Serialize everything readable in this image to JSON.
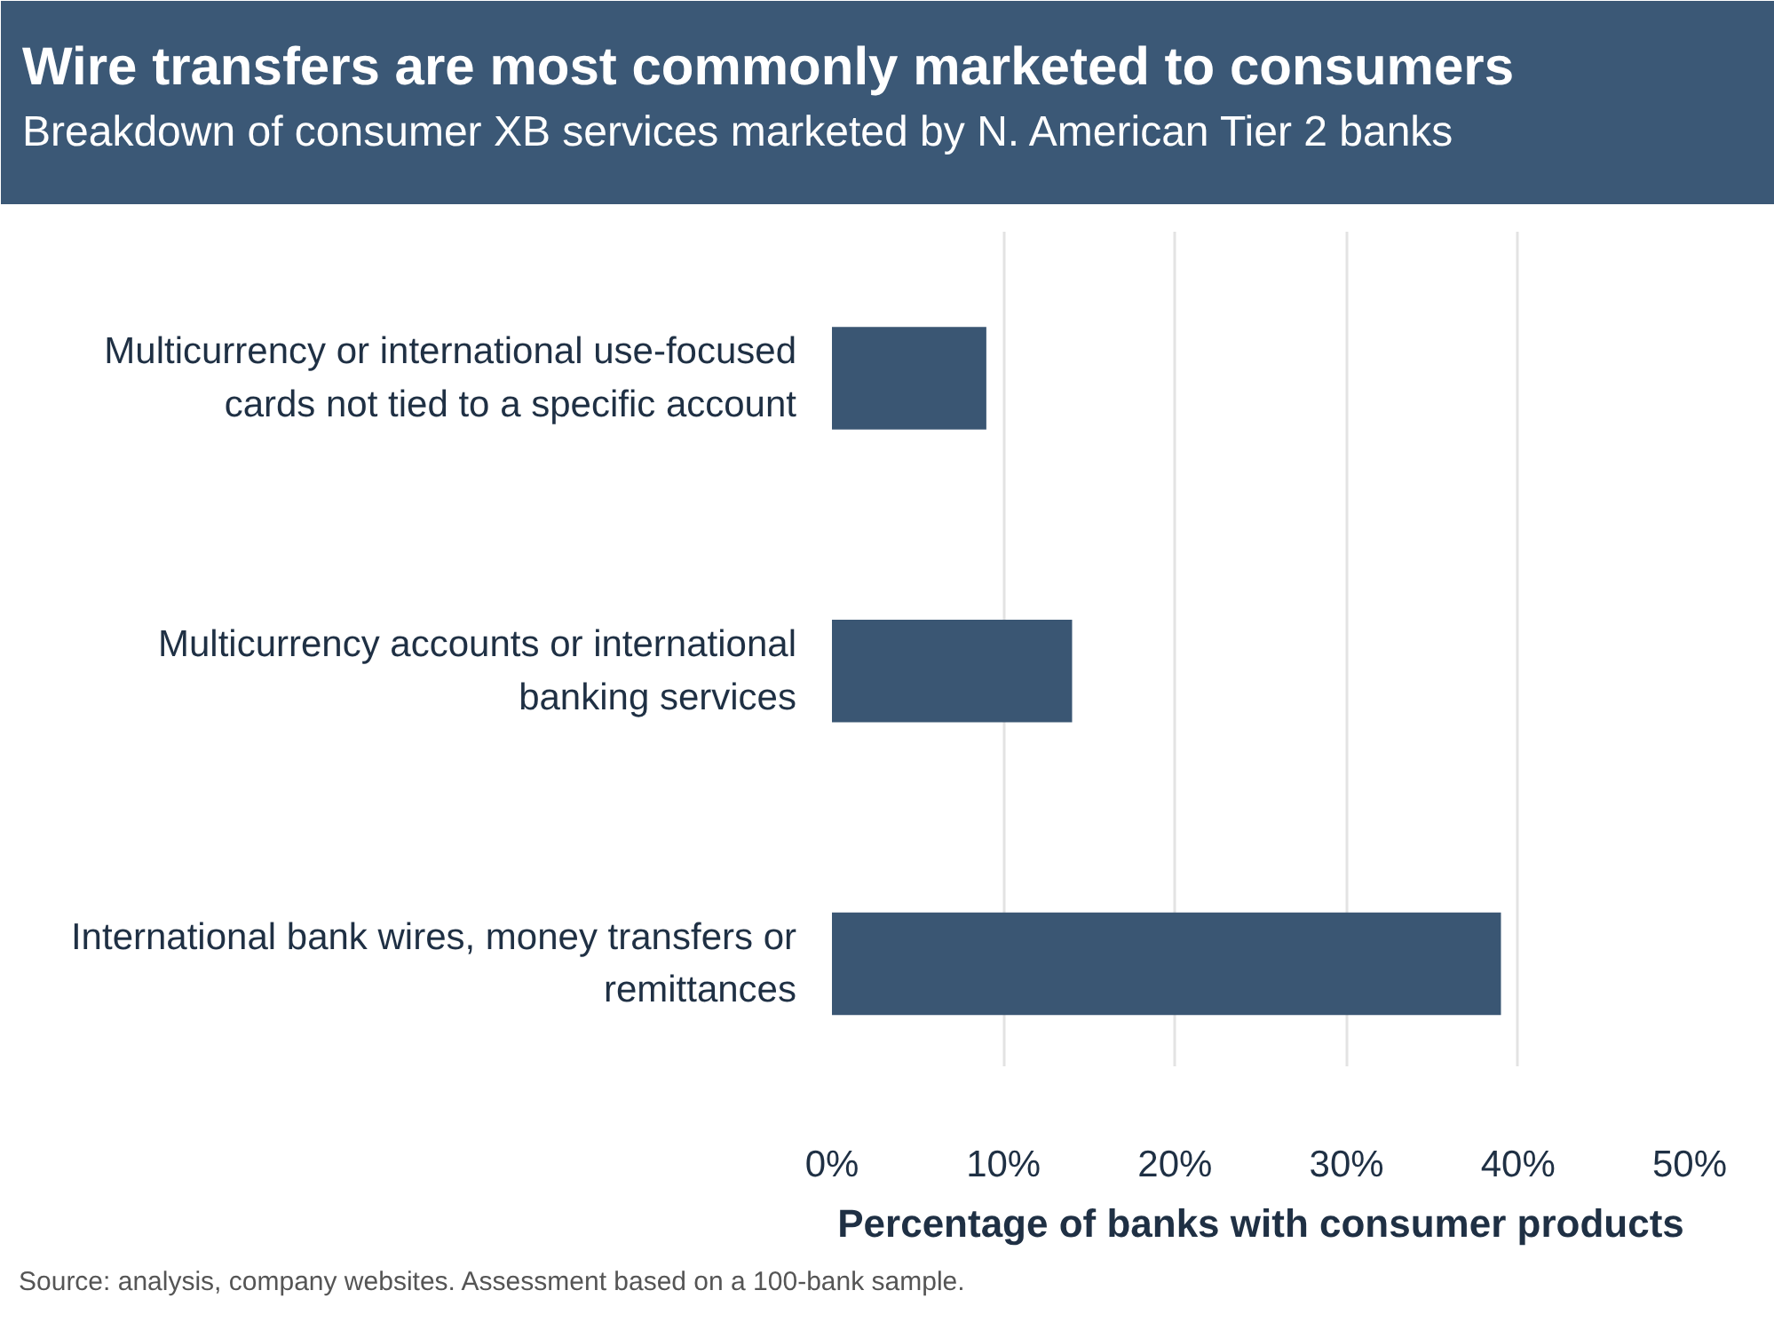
{
  "chart_data": {
    "type": "bar",
    "orientation": "horizontal",
    "title": "Wire transfers are most commonly marketed to consumers",
    "subtitle": "Breakdown of consumer XB services marketed by N. American Tier 2 banks",
    "xlabel": "Percentage of banks with consumer products",
    "categories": [
      "Multicurrency or international use-focused cards not tied to a specific account",
      "Multicurrency accounts or international banking services",
      "International bank wires, money transfers or remittances"
    ],
    "values": [
      9,
      14,
      39
    ],
    "color": "#3a5673",
    "xlim": [
      0,
      50
    ],
    "xticks": [
      {
        "value": 0,
        "label": "0%"
      },
      {
        "value": 10,
        "label": "10%"
      },
      {
        "value": 20,
        "label": "20%"
      },
      {
        "value": 30,
        "label": "30%"
      },
      {
        "value": 40,
        "label": "40%"
      },
      {
        "value": 50,
        "label": "50%"
      }
    ],
    "grid": "x",
    "annotations": [
      "Source: analysis, company websites. Assessment based on a 100-bank sample."
    ]
  }
}
